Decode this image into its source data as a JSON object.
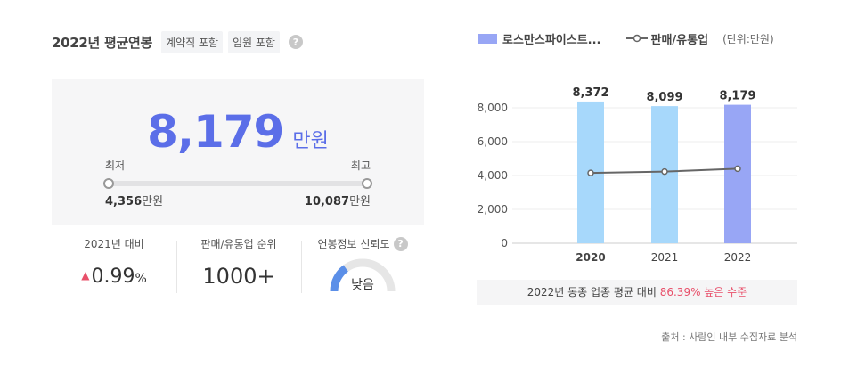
{
  "header": {
    "title": "2022년 평균연봉",
    "tags": [
      "계약직 포함",
      "임원 포함"
    ],
    "help": "?"
  },
  "salary": {
    "value": "8,179",
    "unit": "만원",
    "min_label": "최저",
    "max_label": "최고",
    "min_value": "4,356",
    "max_value": "10,087",
    "value_unit": "만원"
  },
  "stats": {
    "change_label": "2021년 대비",
    "change_arrow": "▲",
    "change_value": "0.99",
    "change_unit": "%",
    "rank_label": "판매/유통업 순위",
    "rank_value": "1000+",
    "reliability_label": "연봉정보 신뢰도",
    "reliability_help": "?",
    "reliability_value": "낮음",
    "reliability_level": 0.3
  },
  "legend": {
    "company": "로스만스파이스트...",
    "industry": "판매/유통업",
    "unit": "(단위:만원)"
  },
  "chart_data": {
    "type": "bar",
    "categories": [
      "2020",
      "2021",
      "2022"
    ],
    "series": [
      {
        "name": "로스만스파이스트...",
        "values": [
          8372,
          8099,
          8179
        ],
        "labels": [
          "8,372",
          "8,099",
          "8,179"
        ]
      },
      {
        "name": "판매/유통업",
        "type": "line",
        "values": [
          4150,
          4230,
          4400
        ]
      }
    ],
    "yticks": [
      "8,000",
      "6,000",
      "4,000",
      "2,000",
      "0"
    ],
    "ytick_values": [
      8000,
      6000,
      4000,
      2000,
      0
    ],
    "ylim": [
      0,
      8000
    ],
    "colors": {
      "bar": "#a7d8fb",
      "bar_highlight": "#98a6f5",
      "line": "#666666",
      "grid": "#eeeeee"
    }
  },
  "compare": {
    "prefix": "2022년 동종 업종 평균 대비",
    "value": "86.39% 높은 수준"
  },
  "source": "출처 : 사람인 내부 수집자료 분석"
}
